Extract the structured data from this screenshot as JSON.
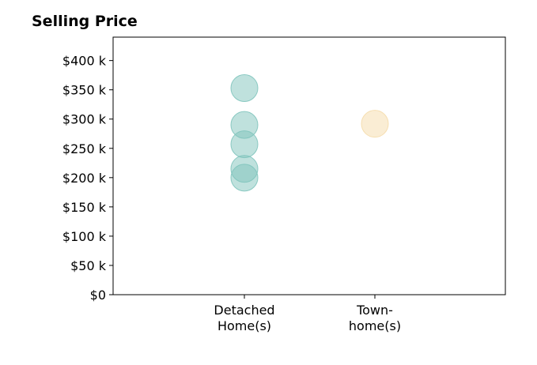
{
  "chart_data": {
    "type": "scatter",
    "title": "Selling Price",
    "xlabel": "",
    "ylabel": "",
    "categories": [
      {
        "label_lines": [
          "Detached",
          "Home(s)"
        ],
        "color": "#7fc4bc"
      },
      {
        "label_lines": [
          "Town-",
          "home(s)"
        ],
        "color": "#f5dcaa"
      }
    ],
    "points": [
      {
        "category": 0,
        "y": 353000
      },
      {
        "category": 0,
        "y": 290000
      },
      {
        "category": 0,
        "y": 257000
      },
      {
        "category": 0,
        "y": 215000
      },
      {
        "category": 0,
        "y": 200000
      },
      {
        "category": 1,
        "y": 292000
      }
    ],
    "ylim": [
      0,
      440000
    ],
    "yticks": [
      {
        "value": 0,
        "label": "$0"
      },
      {
        "value": 50000,
        "label": "$50 k"
      },
      {
        "value": 100000,
        "label": "$100 k"
      },
      {
        "value": 150000,
        "label": "$150 k"
      },
      {
        "value": 200000,
        "label": "$200 k"
      },
      {
        "value": 250000,
        "label": "$250 k"
      },
      {
        "value": 300000,
        "label": "$300 k"
      },
      {
        "value": 350000,
        "label": "$350 k"
      },
      {
        "value": 400000,
        "label": "$400 k"
      }
    ],
    "grid": false,
    "legend": "none"
  }
}
